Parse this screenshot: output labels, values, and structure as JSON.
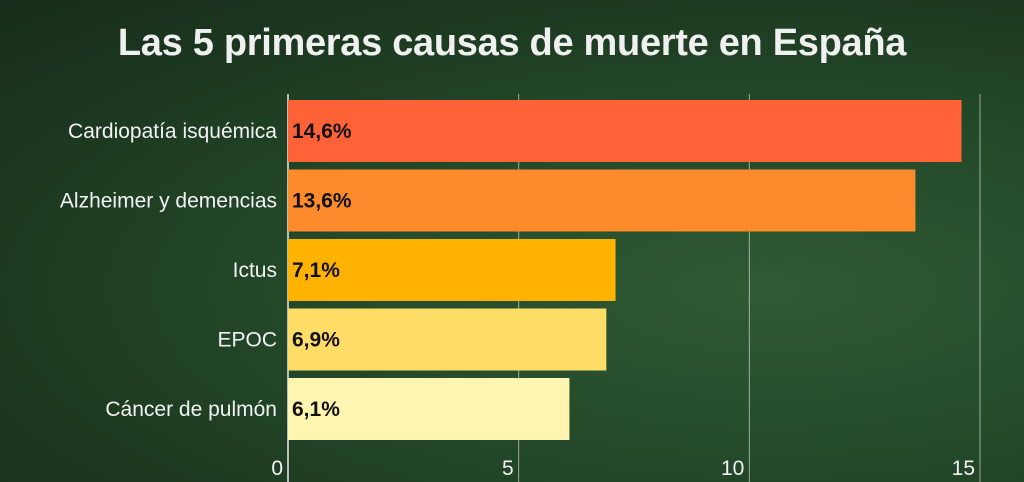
{
  "chart_data": {
    "type": "bar",
    "orientation": "horizontal",
    "title": "Las 5 primeras causas de muerte en España",
    "categories": [
      "Cardiopatía isquémica",
      "Alzheimer y demencias",
      "Ictus",
      "EPOC",
      "Cáncer de pulmón"
    ],
    "values": [
      14.6,
      13.6,
      7.1,
      6.9,
      6.1
    ],
    "value_labels": [
      "14,6%",
      "13,6%",
      "7,1%",
      "6,9%",
      "6,1%"
    ],
    "colors": [
      "#ff6236",
      "#fd8a2b",
      "#ffb300",
      "#ffdd66",
      "#fff5b0"
    ],
    "xlim": [
      0,
      15
    ],
    "xticks": [
      0,
      5,
      10,
      15
    ],
    "xtick_labels": [
      "0",
      "5",
      "10",
      "15"
    ],
    "grid": true
  }
}
